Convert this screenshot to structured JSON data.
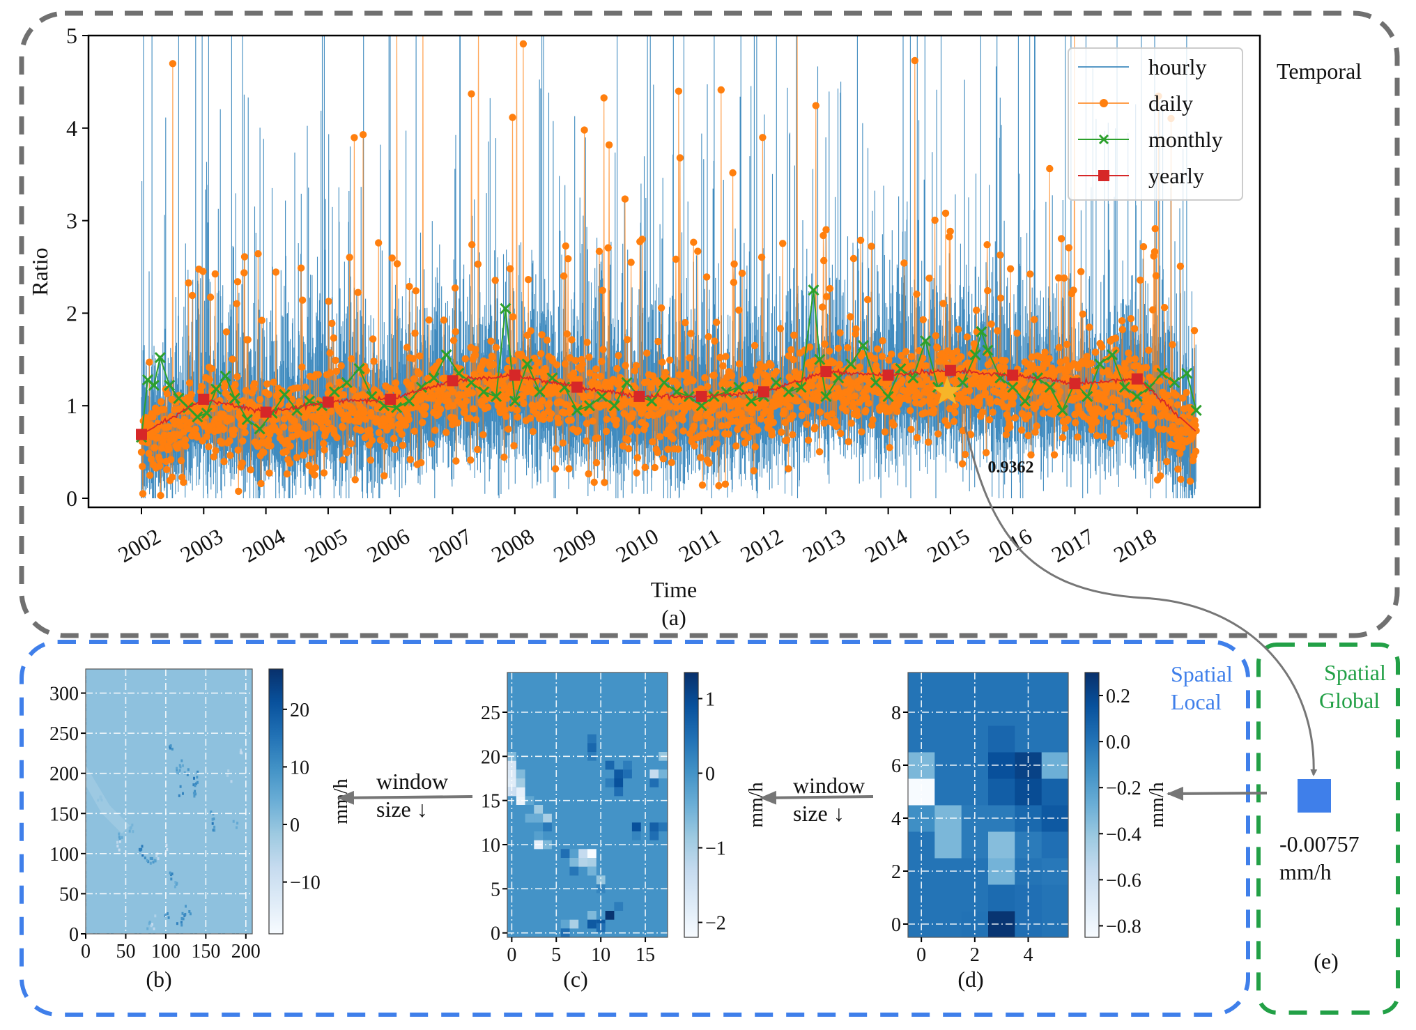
{
  "figure": {
    "panel_labels": {
      "a": "(a)",
      "b": "(b)",
      "c": "(c)",
      "d": "(d)",
      "e": "(e)"
    },
    "group_labels": {
      "temporal": "Temporal",
      "spatial_local": [
        "Spatial",
        "Local"
      ],
      "spatial_global": [
        "Spatial",
        "Global"
      ]
    },
    "arrows": {
      "window_label_line1": "window",
      "window_label_line2": "size ↓"
    },
    "colors": {
      "temporal_box": "#707070",
      "spatial_local_box": "#3f7fea",
      "spatial_global_box": "#22a046",
      "hourly": "#1f77b4",
      "daily": "#ff7f0e",
      "monthly": "#2ca02c",
      "yearly": "#d62728",
      "star": "#f7b528",
      "global_square": "#3f7fea"
    },
    "global_value": {
      "value": "-0.00757",
      "unit": "mm/h"
    }
  },
  "chart_data": [
    {
      "id": "a",
      "type": "line",
      "title": "",
      "xlabel": "Time",
      "ylabel": "Ratio",
      "ylim": [
        -0.1,
        5
      ],
      "yticks": [
        0,
        1,
        2,
        3,
        4,
        5
      ],
      "ytick_labels": [
        "0",
        "1",
        "2",
        "3",
        "4",
        "5"
      ],
      "xlim": [
        2001.3,
        2020.0
      ],
      "xticks": [
        2002,
        2003,
        2004,
        2005,
        2006,
        2007,
        2008,
        2009,
        2010,
        2011,
        2012,
        2013,
        2014,
        2015,
        2016,
        2017,
        2018
      ],
      "xtick_labels": [
        "2002",
        "2003",
        "2004",
        "2005",
        "2006",
        "2007",
        "2008",
        "2009",
        "2010",
        "2011",
        "2012",
        "2013",
        "2014",
        "2015",
        "2016",
        "2017",
        "2018"
      ],
      "legend": {
        "placement": "top-right",
        "entries": [
          "hourly",
          "daily",
          "monthly",
          "yearly"
        ]
      },
      "series": [
        {
          "name": "hourly",
          "style": "thin line",
          "note": "dense hourly ratios, mostly 0–2.5 with many spikes clipped at 5"
        },
        {
          "name": "daily",
          "style": "line with circle markers",
          "note": "daily ratios, mostly 0.3–2 with spikes up to 5"
        },
        {
          "name": "monthly",
          "style": "line with x markers",
          "x": [
            2002.0,
            2002.1,
            2002.2,
            2002.3,
            2002.45,
            2002.6,
            2002.75,
            2002.9,
            2003.05,
            2003.2,
            2003.35,
            2003.5,
            2003.7,
            2003.9,
            2004.1,
            2004.3,
            2004.5,
            2004.7,
            2004.9,
            2005.1,
            2005.3,
            2005.5,
            2005.7,
            2005.9,
            2006.1,
            2006.3,
            2006.5,
            2006.7,
            2006.9,
            2007.1,
            2007.3,
            2007.5,
            2007.7,
            2007.85,
            2008.0,
            2008.2,
            2008.4,
            2008.6,
            2008.8,
            2009.0,
            2009.2,
            2009.4,
            2009.6,
            2009.8,
            2010.0,
            2010.2,
            2010.4,
            2010.6,
            2010.8,
            2011.0,
            2011.2,
            2011.4,
            2011.6,
            2011.8,
            2012.0,
            2012.2,
            2012.4,
            2012.6,
            2012.8,
            2012.9,
            2013.0,
            2013.2,
            2013.4,
            2013.6,
            2013.8,
            2014.0,
            2014.2,
            2014.4,
            2014.6,
            2014.8,
            2015.0,
            2015.2,
            2015.4,
            2015.5,
            2015.6,
            2015.8,
            2016.0,
            2016.2,
            2016.4,
            2016.6,
            2016.8,
            2017.0,
            2017.2,
            2017.4,
            2017.6,
            2017.8,
            2018.0,
            2018.2,
            2018.4,
            2018.6,
            2018.8,
            2018.95
          ],
          "values": [
            0.66,
            1.28,
            1.22,
            1.52,
            1.22,
            1.08,
            0.98,
            0.88,
            0.92,
            1.18,
            1.32,
            1.08,
            0.85,
            0.75,
            0.92,
            1.12,
            0.95,
            1.05,
            1.0,
            1.15,
            1.25,
            1.4,
            1.1,
            1.0,
            0.98,
            1.05,
            1.2,
            1.3,
            1.55,
            1.35,
            1.25,
            1.15,
            1.1,
            2.05,
            1.05,
            1.45,
            1.15,
            1.3,
            1.2,
            0.95,
            1.0,
            1.1,
            1.0,
            1.25,
            1.1,
            1.05,
            1.25,
            1.15,
            1.1,
            1.0,
            1.1,
            1.15,
            1.2,
            1.05,
            1.1,
            1.25,
            1.15,
            1.2,
            2.25,
            1.5,
            1.1,
            1.3,
            1.45,
            1.65,
            1.25,
            1.1,
            1.4,
            1.3,
            1.7,
            1.2,
            1.15,
            1.25,
            1.55,
            1.8,
            1.6,
            1.3,
            1.2,
            1.05,
            1.3,
            1.2,
            0.95,
            1.25,
            1.1,
            1.45,
            1.55,
            1.2,
            1.1,
            1.2,
            1.35,
            1.25,
            1.35,
            0.95
          ]
        },
        {
          "name": "yearly",
          "style": "line with square markers",
          "x": [
            2002,
            2003,
            2004,
            2005,
            2006,
            2007,
            2008,
            2009,
            2010,
            2011,
            2012,
            2013,
            2014,
            2015,
            2016,
            2017,
            2018
          ],
          "values": [
            0.69,
            1.07,
            0.93,
            1.04,
            1.07,
            1.27,
            1.33,
            1.2,
            1.1,
            1.1,
            1.15,
            1.37,
            1.33,
            1.38,
            1.33,
            1.24,
            1.29
          ],
          "tail": {
            "x": 2018.95,
            "value": 0.72
          }
        }
      ],
      "annotations": [
        {
          "type": "star",
          "x": 2014.95,
          "y": 1.15
        },
        {
          "type": "text",
          "text": "0.9362",
          "x": 2015.6,
          "y": 0.28,
          "bold": true
        }
      ]
    },
    {
      "id": "b",
      "type": "heatmap",
      "xlim": [
        0,
        208
      ],
      "ylim": [
        0,
        330
      ],
      "xticks": [
        0,
        50,
        100,
        150,
        200
      ],
      "yticks": [
        0,
        50,
        100,
        150,
        200,
        250,
        300
      ],
      "colorbar": {
        "label": "mm/h",
        "ticks": [
          -10,
          0,
          10,
          20
        ],
        "range": [
          -19,
          27
        ]
      },
      "baseline_value": 0,
      "hotspots": [
        [
          107,
          230,
          12
        ],
        [
          120,
          212,
          10
        ],
        [
          128,
          205,
          14
        ],
        [
          115,
          198,
          8
        ],
        [
          140,
          197,
          16
        ],
        [
          137,
          185,
          18
        ],
        [
          122,
          180,
          12
        ],
        [
          135,
          178,
          10
        ],
        [
          160,
          148,
          10
        ],
        [
          161,
          132,
          14
        ],
        [
          188,
          138,
          6
        ],
        [
          70,
          105,
          14
        ],
        [
          78,
          95,
          10
        ],
        [
          85,
          92,
          8
        ],
        [
          108,
          75,
          12
        ],
        [
          112,
          60,
          6
        ],
        [
          122,
          23,
          14
        ],
        [
          130,
          28,
          10
        ],
        [
          101,
          20,
          14
        ],
        [
          119,
          12,
          12
        ],
        [
          80,
          10,
          6
        ],
        [
          20,
          165,
          4
        ],
        [
          43,
          125,
          6
        ],
        [
          58,
          130,
          4
        ],
        [
          40,
          110,
          -8
        ],
        [
          100,
          105,
          -10
        ],
        [
          177,
          200,
          -6
        ],
        [
          193,
          225,
          -8
        ],
        [
          85,
          12,
          -8
        ],
        [
          92,
          95,
          -6
        ]
      ]
    },
    {
      "id": "c",
      "type": "heatmap",
      "xlim": [
        -0.5,
        17.5
      ],
      "ylim": [
        -0.5,
        29.5
      ],
      "xticks": [
        0,
        5,
        10,
        15
      ],
      "yticks": [
        0,
        5,
        10,
        15,
        20,
        25
      ],
      "colorbar": {
        "label": "mm/h",
        "ticks": [
          -2,
          -1,
          0,
          1
        ],
        "range": [
          -2.2,
          1.35
        ]
      },
      "baseline_value": 0,
      "cells": [
        [
          0,
          20,
          -0.6
        ],
        [
          0,
          19,
          -1.6
        ],
        [
          0,
          18,
          -1.7
        ],
        [
          0,
          17,
          -1.8
        ],
        [
          0,
          16,
          -1.4
        ],
        [
          1,
          18,
          -0.6
        ],
        [
          1,
          17,
          -0.9
        ],
        [
          1,
          16,
          -1.9
        ],
        [
          1,
          15,
          -2.0
        ],
        [
          2,
          15,
          -0.3
        ],
        [
          3,
          14,
          -0.9
        ],
        [
          2,
          13,
          -0.4
        ],
        [
          3,
          13,
          -0.4
        ],
        [
          4,
          13,
          -1.0
        ],
        [
          4,
          12,
          0.35
        ],
        [
          3,
          11,
          -0.2
        ],
        [
          3,
          10,
          -1.9
        ],
        [
          4,
          10,
          -0.6
        ],
        [
          6,
          9,
          0.5
        ],
        [
          7,
          9,
          -0.2
        ],
        [
          8,
          9,
          -1.3
        ],
        [
          9,
          9,
          -2.2
        ],
        [
          7,
          8,
          -0.6
        ],
        [
          8,
          8,
          -1.1
        ],
        [
          9,
          8,
          -1.0
        ],
        [
          7,
          7,
          0.4
        ],
        [
          9,
          7,
          -0.5
        ],
        [
          10,
          6,
          -0.8
        ],
        [
          10,
          5,
          0.2
        ],
        [
          9,
          22,
          0.4
        ],
        [
          9,
          21,
          0.6
        ],
        [
          9,
          20,
          0.3
        ],
        [
          11,
          19,
          0.6
        ],
        [
          13,
          19,
          0.3
        ],
        [
          12,
          18,
          0.8
        ],
        [
          13,
          18,
          0.5
        ],
        [
          11,
          17,
          0.3
        ],
        [
          12,
          17,
          0.9
        ],
        [
          12,
          16,
          0.5
        ],
        [
          14,
          12,
          0.9
        ],
        [
          14,
          11,
          0.2
        ],
        [
          16,
          18,
          -1.3
        ],
        [
          17,
          18,
          -0.5
        ],
        [
          16,
          17,
          0.5
        ],
        [
          17,
          20,
          -0.8
        ],
        [
          16,
          12,
          0.7
        ],
        [
          17,
          12,
          0.4
        ],
        [
          16,
          11,
          0.5
        ],
        [
          11,
          2,
          1.3
        ],
        [
          12,
          3,
          0.3
        ],
        [
          9,
          2,
          -0.6
        ],
        [
          9,
          1,
          0.8
        ],
        [
          10,
          1,
          0.8
        ],
        [
          7,
          1,
          -1.0
        ],
        [
          6,
          1,
          -0.3
        ],
        [
          6,
          0,
          0.5
        ],
        [
          10,
          0.6,
          0.5
        ]
      ]
    },
    {
      "id": "d",
      "type": "heatmap",
      "xlim": [
        -0.5,
        5.5
      ],
      "ylim": [
        -0.5,
        9.5
      ],
      "xticks": [
        0,
        2,
        4
      ],
      "yticks": [
        0,
        2,
        4,
        6,
        8
      ],
      "colorbar": {
        "label": "mm/h",
        "ticks": [
          -0.8,
          -0.6,
          -0.4,
          -0.2,
          0.0,
          0.2
        ],
        "tick_labels": [
          "−0.8",
          "−0.6",
          "−0.4",
          "−0.2",
          "0.0",
          "0.2"
        ],
        "range": [
          -0.85,
          0.3
        ]
      },
      "grid": [
        [
          0.0,
          0.0,
          0.01,
          0.28,
          0.02,
          0.0
        ],
        [
          0.0,
          0.0,
          0.0,
          0.04,
          0.02,
          0.0
        ],
        [
          0.0,
          0.0,
          0.0,
          -0.3,
          0.0,
          -0.02
        ],
        [
          0.0,
          -0.32,
          -0.03,
          -0.35,
          -0.03,
          0.02
        ],
        [
          -0.12,
          -0.32,
          -0.03,
          -0.03,
          0.05,
          0.12
        ],
        [
          -0.85,
          0.0,
          0.0,
          0.1,
          0.18,
          0.08
        ],
        [
          -0.32,
          0.0,
          0.0,
          0.16,
          0.22,
          -0.28
        ],
        [
          0.0,
          0.0,
          0.0,
          0.06,
          0.0,
          0.0
        ],
        [
          0.0,
          0.0,
          0.0,
          0.0,
          0.0,
          0.0
        ],
        [
          0.0,
          0.0,
          0.0,
          0.0,
          0.0,
          0.0
        ]
      ]
    }
  ]
}
